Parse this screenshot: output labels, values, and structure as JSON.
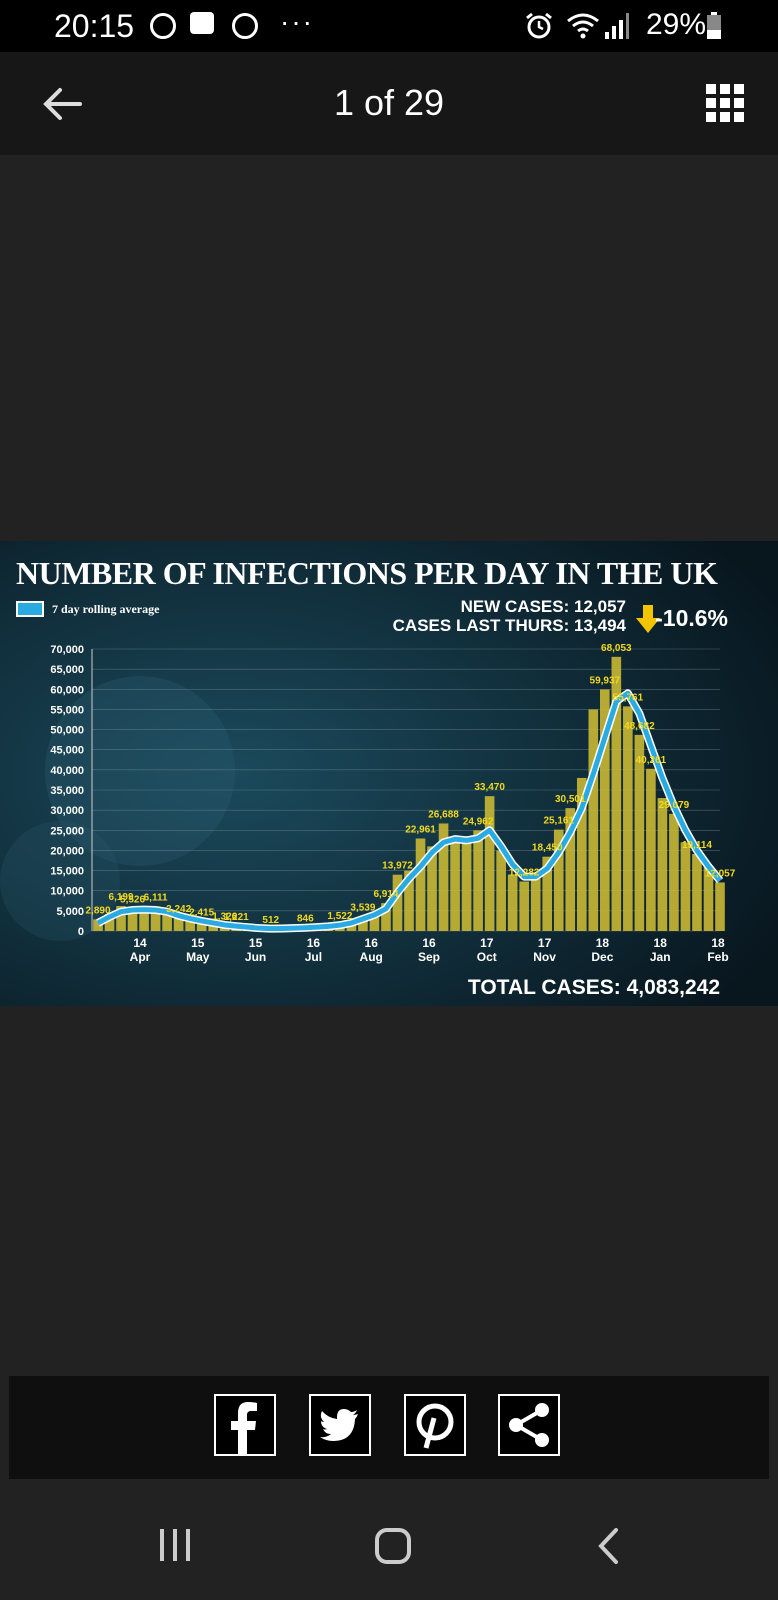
{
  "status_bar": {
    "time": "20:15",
    "battery": "29%"
  },
  "header": {
    "counter": "1 of 29"
  },
  "chart_data": {
    "type": "bar",
    "title": "NUMBER OF INFECTIONS PER DAY IN THE UK",
    "legend": "7 day rolling average",
    "new_cases": "NEW CASES: 12,057",
    "last_thurs": "CASES LAST THURS: 13,494",
    "change": "-10.6%",
    "total": "TOTAL CASES: 4,083,242",
    "ylim": [
      0,
      70000
    ],
    "yticks": [
      "0",
      "5,000",
      "10,000",
      "15,000",
      "20,000",
      "25,000",
      "30,000",
      "35,000",
      "40,000",
      "45,000",
      "50,000",
      "55,000",
      "60,000",
      "65,000",
      "70,000"
    ],
    "x_ticks": [
      {
        "day": "14",
        "month": "Apr"
      },
      {
        "day": "15",
        "month": "May"
      },
      {
        "day": "15",
        "month": "Jun"
      },
      {
        "day": "16",
        "month": "Jul"
      },
      {
        "day": "16",
        "month": "Aug"
      },
      {
        "day": "16",
        "month": "Sep"
      },
      {
        "day": "17",
        "month": "Oct"
      },
      {
        "day": "17",
        "month": "Nov"
      },
      {
        "day": "18",
        "month": "Dec"
      },
      {
        "day": "18",
        "month": "Jan"
      },
      {
        "day": "18",
        "month": "Feb"
      }
    ],
    "daily_values": [
      2890,
      4200,
      6199,
      5526,
      5400,
      6111,
      4900,
      3242,
      2900,
      2415,
      2100,
      1326,
      1221,
      900,
      650,
      512,
      600,
      720,
      846,
      1000,
      1200,
      1522,
      2200,
      3539,
      4600,
      6914,
      13972,
      15000,
      22961,
      21000,
      26688,
      23000,
      22000,
      24962,
      33470,
      20000,
      14000,
      12282,
      13000,
      18450,
      25161,
      30501,
      38000,
      55000,
      59937,
      68053,
      55761,
      48682,
      40261,
      33000,
      29079,
      22000,
      19114,
      16000,
      12057
    ],
    "rolling_avg": [
      2000,
      3500,
      4800,
      5200,
      5300,
      5200,
      4800,
      3800,
      3100,
      2500,
      2000,
      1500,
      1200,
      950,
      700,
      600,
      620,
      700,
      800,
      950,
      1150,
      1450,
      2000,
      3000,
      4000,
      5500,
      9500,
      13000,
      16000,
      19500,
      22000,
      22800,
      22500,
      23000,
      25000,
      21000,
      16500,
      13500,
      13500,
      15500,
      19500,
      24500,
      30500,
      39000,
      48000,
      57000,
      59000,
      54000,
      46000,
      38000,
      31000,
      25000,
      20000,
      16000,
      12500
    ],
    "annotations": [
      {
        "label": "2,890",
        "i": 0
      },
      {
        "label": "6,199",
        "i": 2
      },
      {
        "label": "5,526",
        "i": 3
      },
      {
        "label": "6,111",
        "i": 5
      },
      {
        "label": "3,242",
        "i": 7
      },
      {
        "label": "2,415",
        "i": 9
      },
      {
        "label": "1,326",
        "i": 11
      },
      {
        "label": "1,221",
        "i": 12
      },
      {
        "label": "512",
        "i": 15
      },
      {
        "label": "846",
        "i": 18
      },
      {
        "label": "1,522",
        "i": 21
      },
      {
        "label": "3,539",
        "i": 23
      },
      {
        "label": "6,914",
        "i": 25
      },
      {
        "label": "13,972",
        "i": 26
      },
      {
        "label": "22,961",
        "i": 28
      },
      {
        "label": "26,688",
        "i": 30
      },
      {
        "label": "24,962",
        "i": 33
      },
      {
        "label": "33,470",
        "i": 34
      },
      {
        "label": "12,282",
        "i": 37
      },
      {
        "label": "18,450",
        "i": 39
      },
      {
        "label": "25,161",
        "i": 40
      },
      {
        "label": "30,501",
        "i": 41
      },
      {
        "label": "59,937",
        "i": 44
      },
      {
        "label": "68,053",
        "i": 45
      },
      {
        "label": "55,761",
        "i": 46
      },
      {
        "label": "48,682",
        "i": 47
      },
      {
        "label": "40,261",
        "i": 48
      },
      {
        "label": "29,079",
        "i": 50
      },
      {
        "label": "19,114",
        "i": 52
      },
      {
        "label": "12,057",
        "i": 54
      }
    ],
    "colors": {
      "bars": "#c9b834",
      "line": "#29abe2",
      "label": "#f2d91c",
      "background": "#0d2430",
      "arrow": "#f5c400"
    }
  },
  "share": {
    "items": [
      "facebook-icon",
      "twitter-icon",
      "pinterest-icon",
      "share-icon"
    ]
  },
  "nav": {
    "items": [
      "recent-apps-icon",
      "home-icon",
      "back-icon"
    ]
  }
}
